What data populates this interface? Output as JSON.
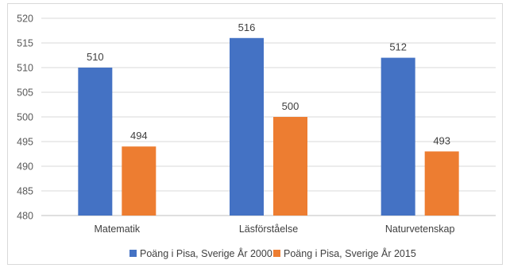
{
  "chart_data": {
    "type": "bar",
    "categories": [
      "Matematik",
      "Läsförståelse",
      "Naturvetenskap"
    ],
    "series": [
      {
        "name": "Poäng i Pisa, Sverige År 2000",
        "values": [
          510,
          516,
          512
        ],
        "color": "#4472C4"
      },
      {
        "name": "Poäng i Pisa, Sverige År 2015",
        "values": [
          494,
          500,
          493
        ],
        "color": "#ED7D31"
      }
    ],
    "y_ticks": [
      "480",
      "485",
      "490",
      "495",
      "500",
      "505",
      "510",
      "515",
      "520"
    ],
    "ylim": [
      480,
      520
    ],
    "grid": true,
    "legend_position": "bottom",
    "title": "",
    "xlabel": "",
    "ylabel": ""
  }
}
